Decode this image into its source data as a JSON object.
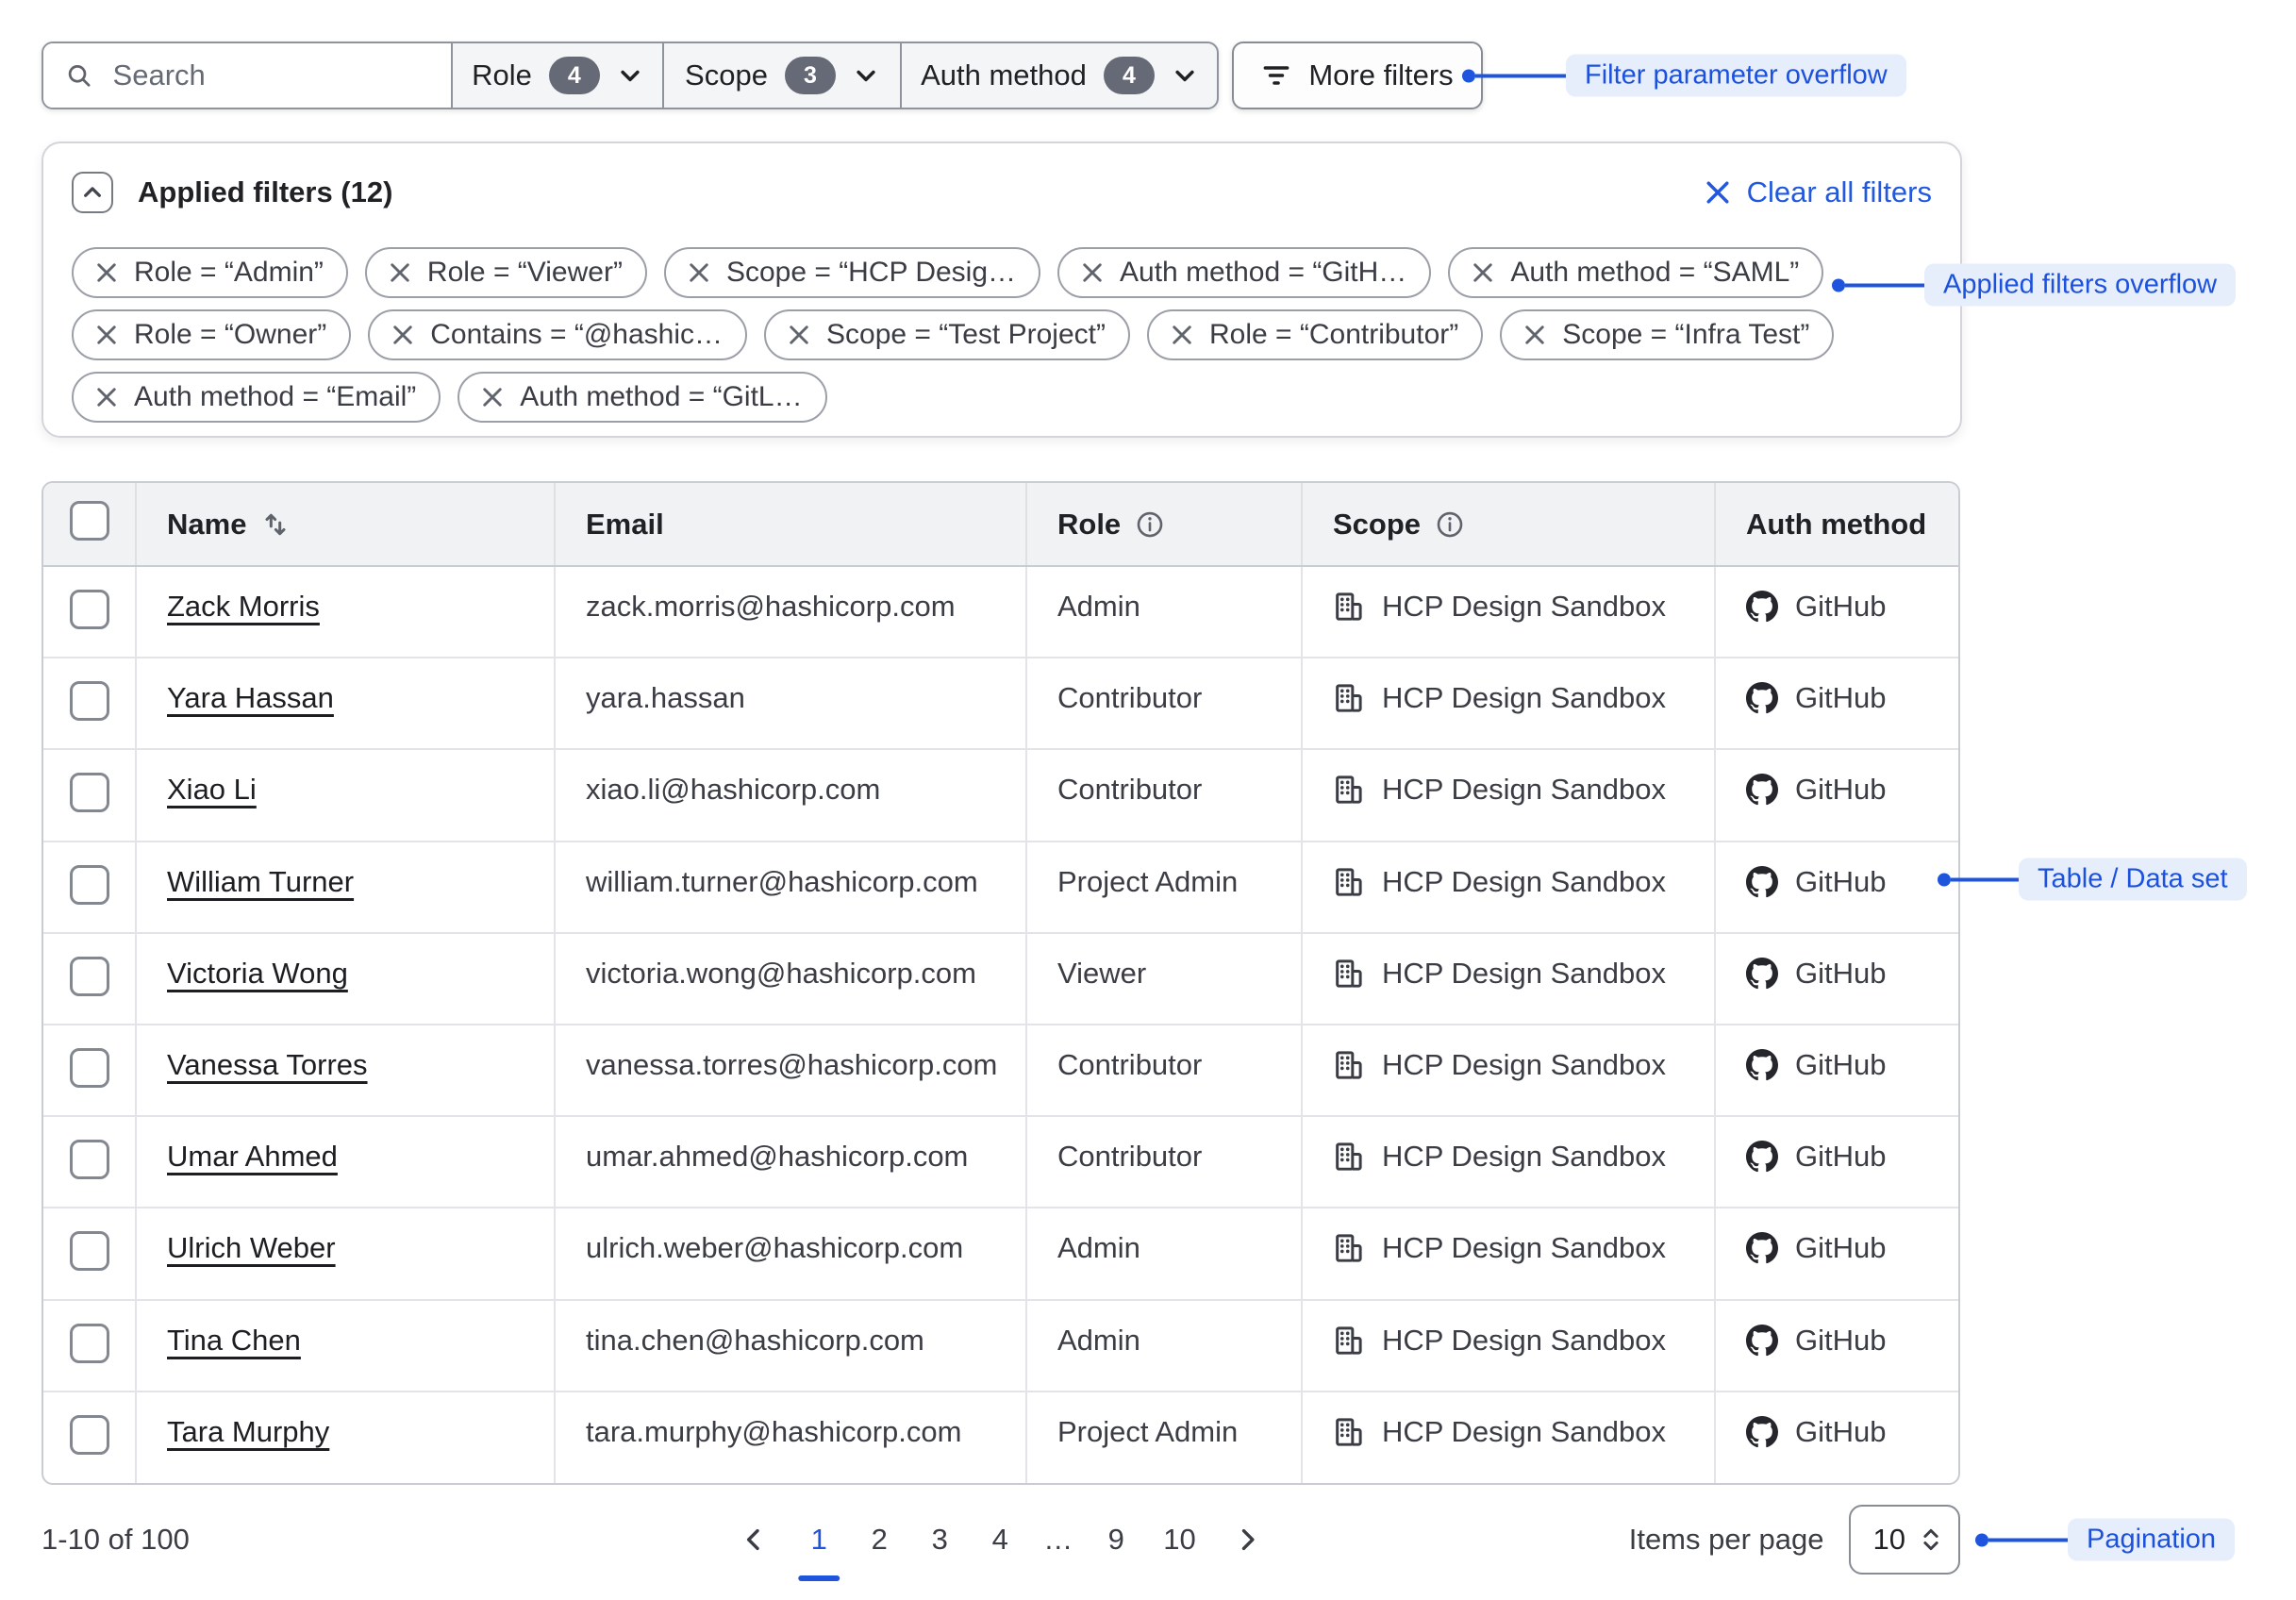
{
  "colors": {
    "accent_blue": "#1f54dd",
    "annotation_bg": "#e7eefb",
    "badge_bg": "#656a76",
    "table_header_bg": "#f1f2f4",
    "text_primary": "#3b3d45",
    "text_strong": "#1f2124"
  },
  "toolbar": {
    "search_placeholder": "Search",
    "filters": [
      {
        "label": "Role",
        "count": "4"
      },
      {
        "label": "Scope",
        "count": "3"
      },
      {
        "label": "Auth method",
        "count": "4"
      }
    ],
    "more_filters_label": "More filters"
  },
  "applied_filters": {
    "title": "Applied filters (12)",
    "clear_label": "Clear all filters",
    "chip_rows": [
      [
        "Role = “Admin”",
        "Role = “Viewer”",
        "Scope = “HCP Desig…",
        "Auth method = “GitH…",
        "Auth method = “SAML”"
      ],
      [
        "Role = “Owner”",
        "Contains = “@hashic…",
        "Scope = “Test Project”",
        "Role = “Contributor”",
        "Scope = “Infra Test”"
      ],
      [
        "Auth method = “Email”",
        "Auth method = “GitL…"
      ]
    ]
  },
  "table": {
    "columns": [
      {
        "label": "Name"
      },
      {
        "label": "Email"
      },
      {
        "label": "Role"
      },
      {
        "label": "Scope"
      },
      {
        "label": "Auth method"
      }
    ],
    "rows": [
      {
        "name": "Zack Morris",
        "email": "zack.morris@hashicorp.com",
        "role": "Admin",
        "scope": "HCP Design Sandbox",
        "auth_method": "GitHub"
      },
      {
        "name": "Yara Hassan",
        "email": "yara.hassan",
        "role": "Contributor",
        "scope": "HCP Design Sandbox",
        "auth_method": "GitHub"
      },
      {
        "name": "Xiao Li",
        "email": "xiao.li@hashicorp.com",
        "role": "Contributor",
        "scope": "HCP Design Sandbox",
        "auth_method": "GitHub"
      },
      {
        "name": "William Turner",
        "email": "william.turner@hashicorp.com",
        "role": "Project Admin",
        "scope": "HCP Design Sandbox",
        "auth_method": "GitHub"
      },
      {
        "name": "Victoria Wong",
        "email": "victoria.wong@hashicorp.com",
        "role": "Viewer",
        "scope": "HCP Design Sandbox",
        "auth_method": "GitHub"
      },
      {
        "name": "Vanessa Torres",
        "email": "vanessa.torres@hashicorp.com",
        "role": "Contributor",
        "scope": "HCP Design Sandbox",
        "auth_method": "GitHub"
      },
      {
        "name": "Umar Ahmed",
        "email": "umar.ahmed@hashicorp.com",
        "role": "Contributor",
        "scope": "HCP Design Sandbox",
        "auth_method": "GitHub"
      },
      {
        "name": "Ulrich Weber",
        "email": "ulrich.weber@hashicorp.com",
        "role": "Admin",
        "scope": "HCP Design Sandbox",
        "auth_method": "GitHub"
      },
      {
        "name": "Tina Chen",
        "email": "tina.chen@hashicorp.com",
        "role": "Admin",
        "scope": "HCP Design Sandbox",
        "auth_method": "GitHub"
      },
      {
        "name": "Tara Murphy",
        "email": "tara.murphy@hashicorp.com",
        "role": "Project Admin",
        "scope": "HCP Design Sandbox",
        "auth_method": "GitHub"
      }
    ]
  },
  "pagination": {
    "range_label": "1-10 of 100",
    "pages": [
      "1",
      "2",
      "3",
      "4",
      "…",
      "9",
      "10"
    ],
    "current_page": "1",
    "items_per_page_label": "Items per page",
    "items_per_page_value": "10"
  },
  "annotations": {
    "filter_overflow": "Filter parameter overflow",
    "applied_overflow": "Applied filters overflow",
    "dataset": "Table / Data set",
    "pagination": "Pagination"
  }
}
